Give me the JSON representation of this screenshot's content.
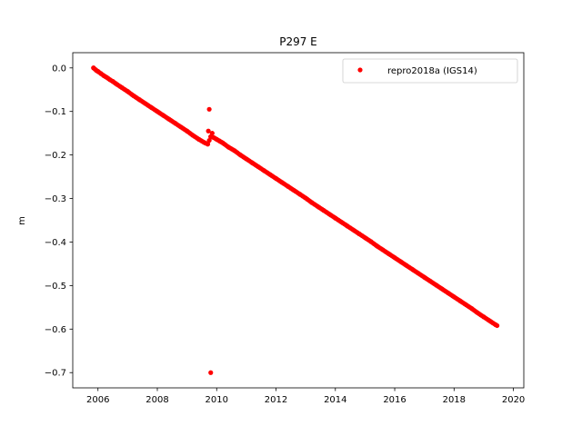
{
  "chart_data": {
    "type": "scatter",
    "title": "P297 E",
    "xlabel": "",
    "ylabel": "m",
    "xlim": [
      2005.15,
      2020.35
    ],
    "ylim": [
      -0.735,
      0.035
    ],
    "xticks": [
      2006,
      2008,
      2010,
      2012,
      2014,
      2016,
      2018,
      2020
    ],
    "xtick_labels": [
      "2006",
      "2008",
      "2010",
      "2012",
      "2014",
      "2016",
      "2018",
      "2020"
    ],
    "yticks": [
      0.0,
      -0.1,
      -0.2,
      -0.3,
      -0.4,
      -0.5,
      -0.6,
      -0.7
    ],
    "ytick_labels": [
      "0.0",
      "−0.1",
      "−0.2",
      "−0.3",
      "−0.4",
      "−0.5",
      "−0.6",
      "−0.7"
    ],
    "grid": false,
    "legend_position": "top-right",
    "series": [
      {
        "name": "repro2018a (IGS14)",
        "color": "#ff0000",
        "marker": "circle",
        "x": [
          2005.85,
          2005.9,
          2005.95,
          2006.0,
          2006.1,
          2006.2,
          2006.3,
          2006.4,
          2006.5,
          2006.6,
          2006.8,
          2007.0,
          2007.2,
          2007.4,
          2007.6,
          2007.8,
          2008.0,
          2008.2,
          2008.4,
          2008.6,
          2008.8,
          2009.0,
          2009.2,
          2009.4,
          2009.6,
          2009.7,
          2009.8,
          2009.9,
          2010.0,
          2010.1,
          2010.2,
          2010.4,
          2010.6,
          2010.8,
          2011.0,
          2011.2,
          2011.4,
          2011.6,
          2011.8,
          2012.0,
          2012.2,
          2012.4,
          2012.6,
          2012.8,
          2013.0,
          2013.2,
          2013.4,
          2013.6,
          2013.8,
          2014.0,
          2014.2,
          2014.4,
          2014.6,
          2014.8,
          2015.0,
          2015.2,
          2015.4,
          2015.6,
          2015.8,
          2016.0,
          2016.2,
          2016.4,
          2016.6,
          2016.8,
          2017.0,
          2017.2,
          2017.4,
          2017.6,
          2017.8,
          2018.0,
          2018.2,
          2018.4,
          2018.6,
          2018.8,
          2019.0,
          2019.2,
          2019.4,
          2019.45,
          2009.75,
          2009.8,
          2009.72,
          2009.85
        ],
        "y": [
          0.0,
          -0.003,
          -0.006,
          -0.008,
          -0.013,
          -0.018,
          -0.022,
          -0.027,
          -0.031,
          -0.036,
          -0.045,
          -0.054,
          -0.064,
          -0.073,
          -0.082,
          -0.091,
          -0.1,
          -0.109,
          -0.118,
          -0.127,
          -0.136,
          -0.145,
          -0.155,
          -0.164,
          -0.172,
          -0.175,
          -0.158,
          -0.16,
          -0.164,
          -0.168,
          -0.172,
          -0.182,
          -0.19,
          -0.2,
          -0.209,
          -0.218,
          -0.227,
          -0.236,
          -0.245,
          -0.254,
          -0.263,
          -0.272,
          -0.281,
          -0.29,
          -0.299,
          -0.309,
          -0.318,
          -0.327,
          -0.336,
          -0.345,
          -0.354,
          -0.363,
          -0.372,
          -0.381,
          -0.39,
          -0.399,
          -0.409,
          -0.418,
          -0.427,
          -0.436,
          -0.445,
          -0.454,
          -0.463,
          -0.472,
          -0.481,
          -0.49,
          -0.499,
          -0.508,
          -0.517,
          -0.526,
          -0.535,
          -0.544,
          -0.553,
          -0.563,
          -0.572,
          -0.581,
          -0.59,
          -0.592,
          -0.095,
          -0.7,
          -0.145,
          -0.15
        ]
      }
    ]
  }
}
